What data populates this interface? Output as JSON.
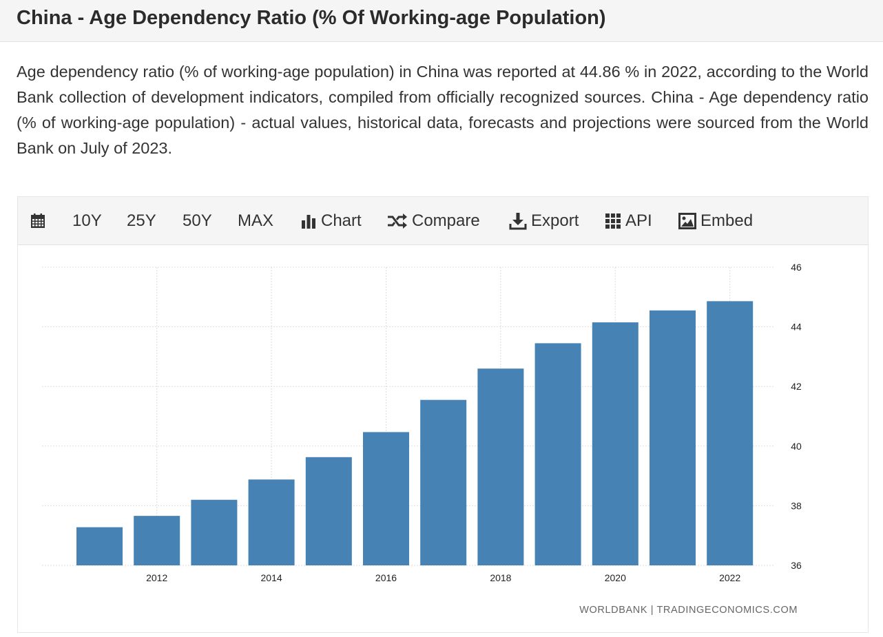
{
  "page": {
    "title": "China - Age Dependency Ratio (% Of Working-age Population)",
    "description": "Age dependency ratio (% of working-age population) in China was reported at 44.86 % in 2022, according to the World Bank collection of development indicators, compiled from officially recognized sources. China - Age dependency ratio (% of working-age population) - actual values, historical data, forecasts and projections were sourced from the World Bank on July of 2023."
  },
  "toolbar": {
    "calendar_icon": "calendar-icon",
    "range_10y": "10Y",
    "range_25y": "25Y",
    "range_50y": "50Y",
    "range_max": "MAX",
    "chart_label": "Chart",
    "compare_label": "Compare",
    "export_label": "Export",
    "api_label": "API",
    "embed_label": "Embed"
  },
  "source_label": "WORLDBANK | TRADINGECONOMICS.COM",
  "colors": {
    "bar": "#4682b4",
    "grid": "#dddddd"
  },
  "chart_data": {
    "type": "bar",
    "categories": [
      "2011",
      "2012",
      "2013",
      "2014",
      "2015",
      "2016",
      "2017",
      "2018",
      "2019",
      "2020",
      "2021",
      "2022"
    ],
    "values": [
      37.28,
      37.66,
      38.2,
      38.88,
      39.63,
      40.47,
      41.55,
      42.6,
      43.45,
      44.15,
      44.55,
      44.86
    ],
    "x_tick_labels": [
      "2012",
      "2014",
      "2016",
      "2018",
      "2020",
      "2022"
    ],
    "y_ticks": [
      36,
      38,
      40,
      42,
      44,
      46
    ],
    "ylim": [
      36,
      46
    ],
    "y_axis_position": "right",
    "grid": true,
    "title": "",
    "xlabel": "",
    "ylabel": ""
  }
}
